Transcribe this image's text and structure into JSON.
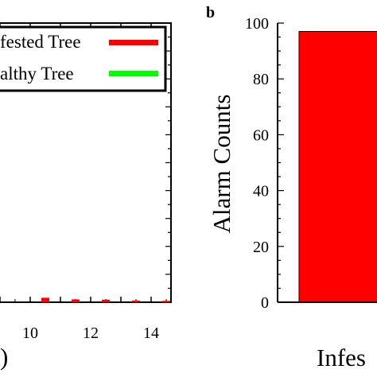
{
  "chart_data": [
    {
      "type": "bar",
      "panel": "",
      "xlim": [
        8.5,
        15
      ],
      "ylim": [
        0,
        100
      ],
      "x_ticks": [
        "10",
        "12",
        "14"
      ],
      "x_label_fragment": ")",
      "legend": [
        {
          "label": "fested Tree",
          "color": "#ff0000"
        },
        {
          "label": "althy Tree",
          "color": "#00ff00"
        }
      ],
      "legend_position": "top-right",
      "series": [
        {
          "name": "fested Tree",
          "color": "#ff0000",
          "x": [
            10.5,
            11.5,
            12.5,
            13.5,
            14.5
          ],
          "values": [
            1.6,
            1.0,
            0.9,
            0.6,
            0.5
          ]
        }
      ]
    },
    {
      "type": "bar",
      "panel": "b",
      "ylabel": "Alarm Counts",
      "ylim": [
        0,
        100
      ],
      "y_ticks": [
        "0",
        "20",
        "40",
        "60",
        "80",
        "100"
      ],
      "categories": [
        "Infes"
      ],
      "values": [
        97
      ],
      "color": "#ff0000"
    }
  ]
}
